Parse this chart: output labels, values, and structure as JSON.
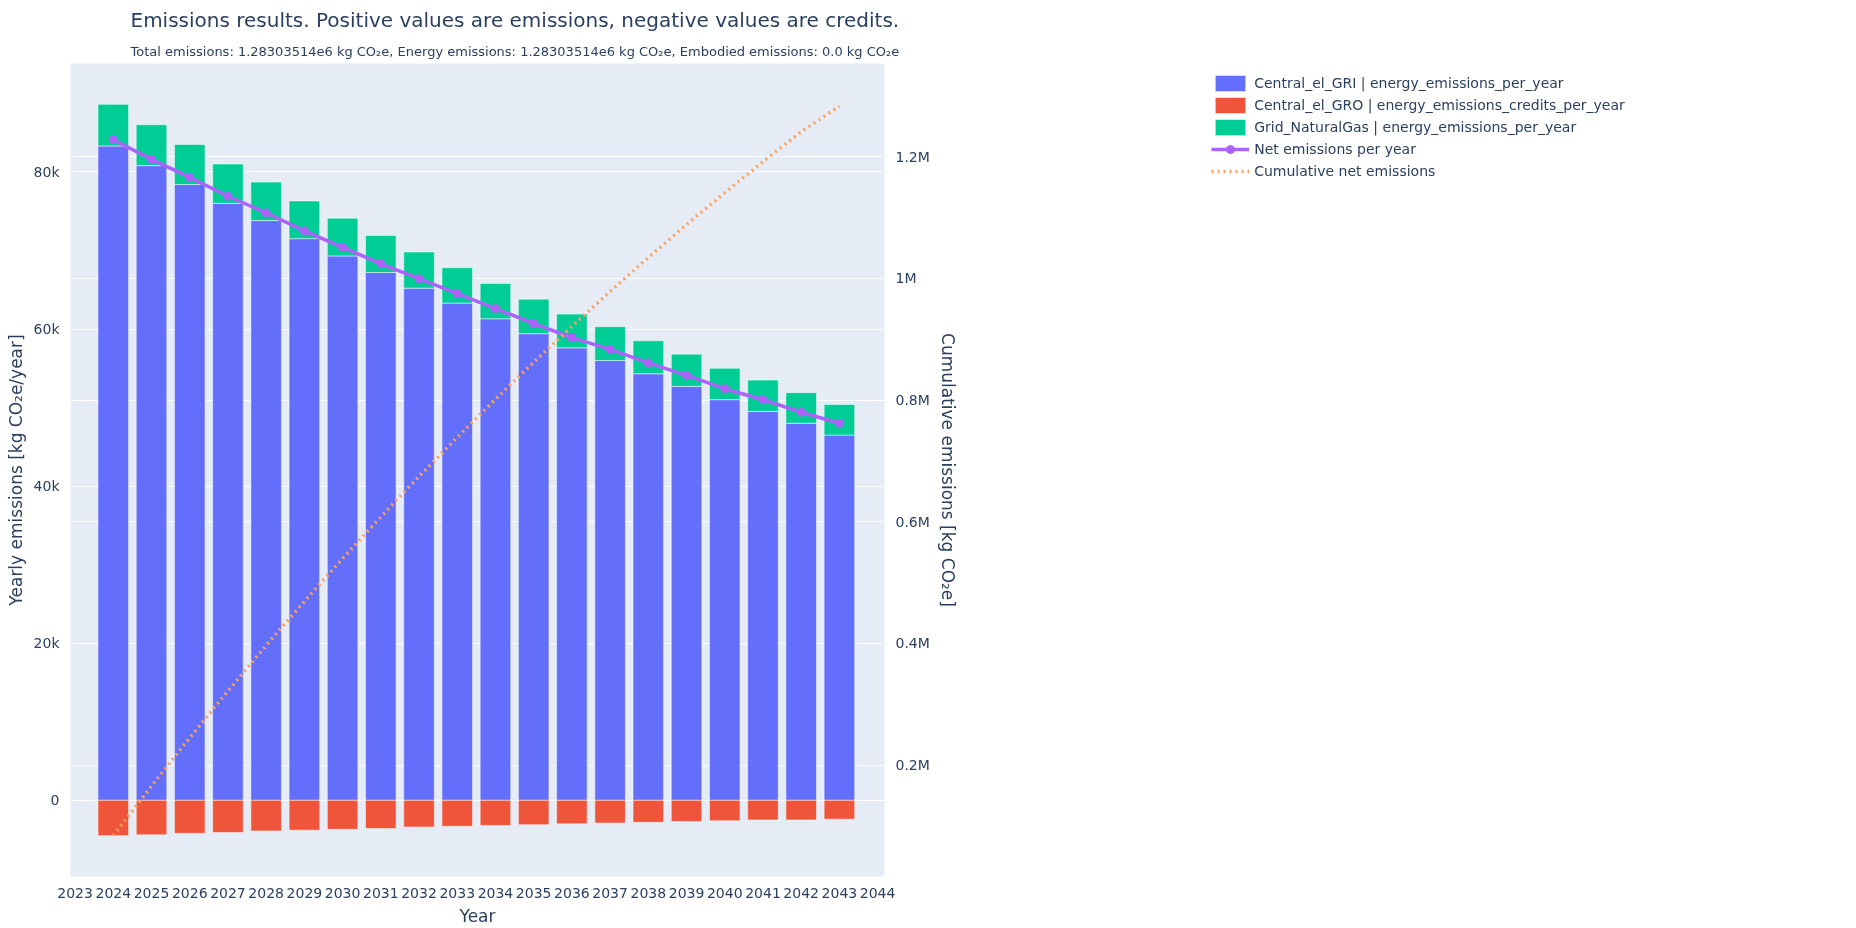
{
  "chart_data": {
    "type": "bar",
    "stacked": true,
    "title": "Emissions results. Positive values are emissions, negative values are credits.",
    "subtitle": "Total emissions: 1.28303514e6 kg CO₂e, Energy emissions: 1.28303514e6 kg CO₂e, Embodied emissions: 0.0 kg CO₂e",
    "xlabel": "Year",
    "ylabel": "Yearly emissions [kg CO₂e/year]",
    "y2label": "Cumulative emissions [kg CO₂e]",
    "x": [
      2024,
      2025,
      2026,
      2027,
      2028,
      2029,
      2030,
      2031,
      2032,
      2033,
      2034,
      2035,
      2036,
      2037,
      2038,
      2039,
      2040,
      2041,
      2042,
      2043
    ],
    "xlim": [
      2022.88,
      2044.18
    ],
    "xticks": [
      2023,
      2024,
      2025,
      2026,
      2027,
      2028,
      2029,
      2030,
      2031,
      2032,
      2033,
      2034,
      2035,
      2036,
      2037,
      2038,
      2039,
      2040,
      2041,
      2042,
      2043,
      2044
    ],
    "ylim": [
      -9700,
      93800
    ],
    "yticks": [
      {
        "value": 0,
        "label": "0"
      },
      {
        "value": 20000,
        "label": "20k"
      },
      {
        "value": 40000,
        "label": "40k"
      },
      {
        "value": 60000,
        "label": "60k"
      },
      {
        "value": 80000,
        "label": "80k"
      }
    ],
    "y2lim": [
      17000,
      1353000
    ],
    "y2ticks": [
      {
        "value": 200000,
        "label": "0.2M"
      },
      {
        "value": 400000,
        "label": "0.4M"
      },
      {
        "value": 600000,
        "label": "0.6M"
      },
      {
        "value": 800000,
        "label": "0.8M"
      },
      {
        "value": 1000000,
        "label": "1M"
      },
      {
        "value": 1200000,
        "label": "1.2M"
      }
    ],
    "grid": "y",
    "legend": "right",
    "series": [
      {
        "name": "Central_el_GRI | energy_emissions_per_year",
        "color": "#636efa",
        "values": [
          83300,
          80800,
          78400,
          76000,
          73800,
          71500,
          69300,
          67200,
          65200,
          63300,
          61300,
          59400,
          57600,
          56000,
          54300,
          52700,
          51000,
          49500,
          48000,
          46500
        ]
      },
      {
        "name": "Central_el_GRO | energy_emissions_credits_per_year",
        "color": "#ef553b",
        "values": [
          -4500,
          -4400,
          -4200,
          -4100,
          -3900,
          -3800,
          -3700,
          -3600,
          -3400,
          -3300,
          -3200,
          -3100,
          -3000,
          -2900,
          -2800,
          -2700,
          -2600,
          -2500,
          -2500,
          -2400
        ]
      },
      {
        "name": "Grid_NaturalGas | energy_emissions_per_year",
        "color": "#00cc96",
        "values": [
          5300,
          5200,
          5100,
          5000,
          4900,
          4800,
          4800,
          4700,
          4600,
          4500,
          4500,
          4400,
          4300,
          4300,
          4200,
          4100,
          4000,
          4000,
          3900,
          3900
        ]
      },
      {
        "name": "Net emissions per year",
        "type": "line",
        "color": "#ab63fa",
        "marker": "circle",
        "line_style": "solid",
        "values": [
          84100,
          81600,
          79300,
          76900,
          74800,
          72500,
          70400,
          68300,
          66400,
          64500,
          62600,
          60700,
          58900,
          57400,
          55700,
          54100,
          52400,
          51000,
          49400,
          48000
        ]
      },
      {
        "name": "Cumulative net emissions",
        "type": "line",
        "axis": "y2",
        "color": "#ffa15a",
        "line_style": "dotted",
        "values": [
          84100,
          165700,
          245000,
          321900,
          396700,
          469200,
          539600,
          607900,
          674300,
          738800,
          801400,
          862100,
          921000,
          978400,
          1034100,
          1088200,
          1140600,
          1191600,
          1241000,
          1283000
        ]
      }
    ]
  }
}
